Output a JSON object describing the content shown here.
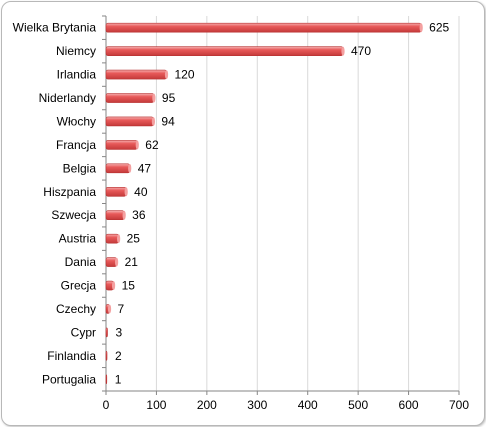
{
  "chart_data": {
    "type": "bar",
    "orientation": "horizontal",
    "categories": [
      "Wielka Brytania",
      "Niemcy",
      "Irlandia",
      "Niderlandy",
      "Włochy",
      "Francja",
      "Belgia",
      "Hiszpania",
      "Szwecja",
      "Austria",
      "Dania",
      "Grecja",
      "Czechy",
      "Cypr",
      "Finlandia",
      "Portugalia"
    ],
    "values": [
      625,
      470,
      120,
      95,
      94,
      62,
      47,
      40,
      36,
      25,
      21,
      15,
      7,
      3,
      2,
      1
    ],
    "value_labels": [
      "625",
      "470",
      "120",
      "95",
      "94",
      "62",
      "47",
      "40",
      "36",
      "25",
      "21",
      "15",
      "7",
      "3",
      "2",
      "1"
    ],
    "xlim": [
      0,
      700
    ],
    "xticks": [
      "0",
      "100",
      "200",
      "300",
      "400",
      "500",
      "600",
      "700"
    ],
    "grid": true,
    "legend": "none",
    "colors": {
      "bar": "#e74c4c",
      "bar_light": "#f4a0a0",
      "bar_dark": "#b83232",
      "grid": "#d9d9d9",
      "axis": "#868686"
    }
  }
}
